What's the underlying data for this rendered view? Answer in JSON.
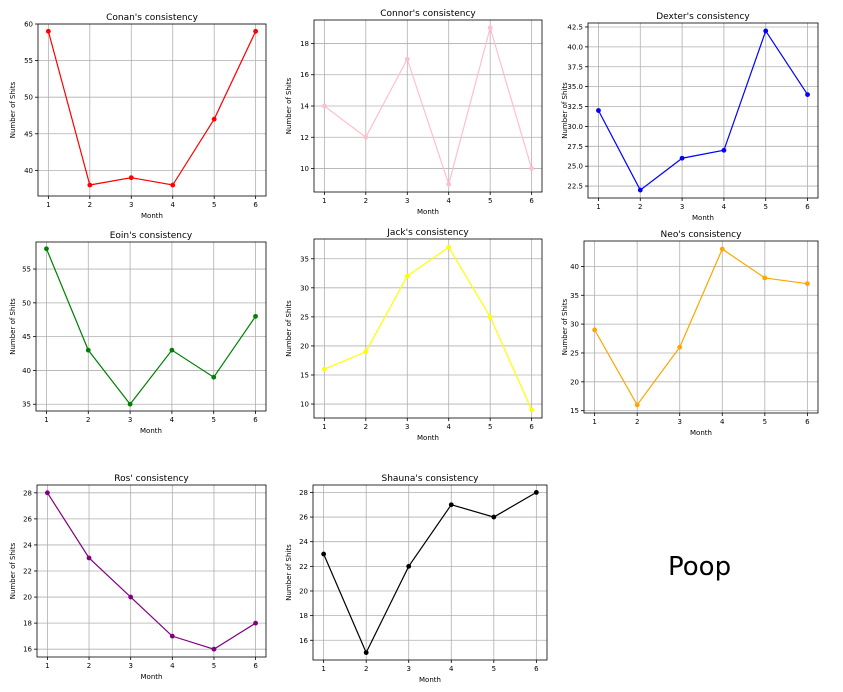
{
  "free_text": "Poop",
  "chart_data": [
    {
      "type": "line",
      "title": "Conan's consistency",
      "xlabel": "Month",
      "ylabel": "Number of Shits",
      "x": [
        1,
        2,
        3,
        4,
        5,
        6
      ],
      "series": [
        {
          "values": [
            59,
            38,
            39,
            38,
            47,
            59
          ],
          "color": "#ff0000"
        }
      ],
      "ylim": [
        36.5,
        60
      ],
      "yticks": [
        40,
        45,
        50,
        55,
        60
      ],
      "grid": true
    },
    {
      "type": "line",
      "title": "Connor's consistency",
      "xlabel": "Month",
      "ylabel": "Number of Shits",
      "x": [
        1,
        2,
        3,
        4,
        5,
        6
      ],
      "series": [
        {
          "values": [
            14,
            12,
            17,
            9,
            19,
            10
          ],
          "color": "#ffc0cb"
        }
      ],
      "ylim": [
        8.5,
        19.5
      ],
      "yticks": [
        10,
        12,
        14,
        16,
        18
      ],
      "grid": true
    },
    {
      "type": "line",
      "title": "Dexter's consistency",
      "xlabel": "Month",
      "ylabel": "Number of Shits",
      "x": [
        1,
        2,
        3,
        4,
        5,
        6
      ],
      "series": [
        {
          "values": [
            32,
            22,
            26,
            27,
            42,
            34
          ],
          "color": "#0000ff"
        }
      ],
      "ylim": [
        21,
        43
      ],
      "yticks": [
        22.5,
        25.0,
        27.5,
        30.0,
        32.5,
        35.0,
        37.5,
        40.0,
        42.5
      ],
      "grid": true
    },
    {
      "type": "line",
      "title": "Eoin's consistency",
      "xlabel": "Month",
      "ylabel": "Number of Shits",
      "x": [
        1,
        2,
        3,
        4,
        5,
        6
      ],
      "series": [
        {
          "values": [
            58,
            43,
            35,
            43,
            39,
            48
          ],
          "color": "#008000"
        }
      ],
      "ylim": [
        34,
        59
      ],
      "yticks": [
        35,
        40,
        45,
        50,
        55
      ],
      "grid": true
    },
    {
      "type": "line",
      "title": "Jack's consistency",
      "xlabel": "Month",
      "ylabel": "Number of Shits",
      "x": [
        1,
        2,
        3,
        4,
        5,
        6
      ],
      "series": [
        {
          "values": [
            16,
            19,
            32,
            37,
            25,
            9
          ],
          "color": "#ffff00"
        }
      ],
      "ylim": [
        7.6,
        38.4
      ],
      "yticks": [
        10,
        15,
        20,
        25,
        30,
        35
      ],
      "grid": true
    },
    {
      "type": "line",
      "title": "Neo's consistency",
      "xlabel": "Month",
      "ylabel": "Number of Shits",
      "x": [
        1,
        2,
        3,
        4,
        5,
        6
      ],
      "series": [
        {
          "values": [
            29,
            16,
            26,
            43,
            38,
            37
          ],
          "color": "#ffa500"
        }
      ],
      "ylim": [
        14.6,
        44.4
      ],
      "yticks": [
        15,
        20,
        25,
        30,
        35,
        40
      ],
      "grid": true
    },
    {
      "type": "line",
      "title": "Ros' consistency",
      "xlabel": "Month",
      "ylabel": "Number of Shits",
      "x": [
        1,
        2,
        3,
        4,
        5,
        6
      ],
      "series": [
        {
          "values": [
            28,
            23,
            20,
            17,
            16,
            18
          ],
          "color": "#800080"
        }
      ],
      "ylim": [
        15.4,
        28.6
      ],
      "yticks": [
        16,
        18,
        20,
        22,
        24,
        26,
        28
      ],
      "grid": true
    },
    {
      "type": "line",
      "title": "Shauna's consistency",
      "xlabel": "Month",
      "ylabel": "Number of Shits",
      "x": [
        1,
        2,
        3,
        4,
        5,
        6
      ],
      "series": [
        {
          "values": [
            23,
            15,
            22,
            27,
            26,
            28
          ],
          "color": "#000000"
        }
      ],
      "ylim": [
        14.4,
        28.6
      ],
      "yticks": [
        16,
        18,
        20,
        22,
        24,
        26,
        28
      ],
      "grid": true
    }
  ]
}
